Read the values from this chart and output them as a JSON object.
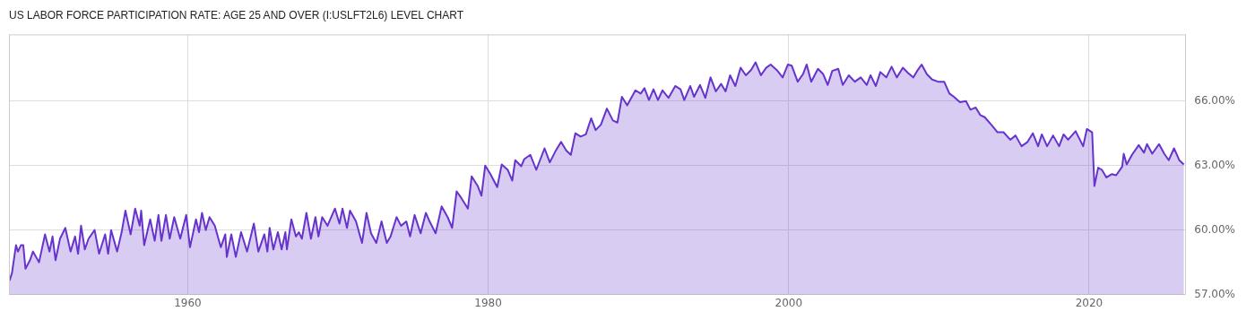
{
  "chart_data": {
    "type": "area",
    "title": "US LABOR FORCE PARTICIPATION RATE: AGE 25 AND OVER (I:USLFT2L6) LEVEL CHART",
    "grid": true,
    "xlim": [
      1948.1,
      2026.4
    ],
    "xticks": [
      1960,
      1980,
      2000,
      2020
    ],
    "ylim": [
      57,
      69.1
    ],
    "yticks": [
      {
        "value": 57,
        "label": "57.00%"
      },
      {
        "value": 60,
        "label": "60.00%"
      },
      {
        "value": 63,
        "label": "63.00%"
      },
      {
        "value": 66,
        "label": "66.00%"
      }
    ],
    "series": [
      {
        "color": "#6633cc",
        "x": [
          1948.14,
          1948.3,
          1948.57,
          1948.7,
          1948.9,
          1949.05,
          1949.2,
          1949.5,
          1949.7,
          1950.1,
          1950.5,
          1950.8,
          1951.0,
          1951.2,
          1951.5,
          1951.85,
          1952.2,
          1952.5,
          1952.7,
          1952.9,
          1953.15,
          1953.4,
          1953.8,
          1954.1,
          1954.5,
          1954.7,
          1954.9,
          1955.3,
          1955.6,
          1955.85,
          1956.2,
          1956.5,
          1956.8,
          1956.9,
          1957.1,
          1957.5,
          1957.8,
          1958.05,
          1958.25,
          1958.55,
          1958.8,
          1959.1,
          1959.5,
          1959.9,
          1960.15,
          1960.55,
          1960.75,
          1960.95,
          1961.2,
          1961.45,
          1961.8,
          1962.2,
          1962.5,
          1962.6,
          1962.9,
          1963.2,
          1963.55,
          1963.95,
          1964.4,
          1964.7,
          1965.1,
          1965.3,
          1965.45,
          1965.7,
          1966.0,
          1966.25,
          1966.5,
          1966.6,
          1966.9,
          1967.2,
          1967.4,
          1967.6,
          1967.9,
          1968.2,
          1968.5,
          1968.7,
          1968.95,
          1969.3,
          1969.8,
          1970.1,
          1970.3,
          1970.6,
          1970.8,
          1971.2,
          1971.6,
          1971.9,
          1972.2,
          1972.55,
          1972.9,
          1973.25,
          1973.5,
          1973.9,
          1974.2,
          1974.55,
          1974.8,
          1975.1,
          1975.5,
          1975.85,
          1976.1,
          1976.5,
          1976.9,
          1977.3,
          1977.6,
          1977.9,
          1978.2,
          1978.65,
          1978.9,
          1979.3,
          1979.55,
          1979.8,
          1980.15,
          1980.6,
          1980.9,
          1981.3,
          1981.6,
          1981.8,
          1982.2,
          1982.4,
          1982.8,
          1983.2,
          1983.75,
          1984.1,
          1984.5,
          1984.85,
          1985.2,
          1985.5,
          1985.8,
          1986.15,
          1986.5,
          1986.85,
          1987.15,
          1987.5,
          1987.9,
          1988.3,
          1988.6,
          1988.9,
          1989.25,
          1989.8,
          1990.15,
          1990.4,
          1990.7,
          1991.0,
          1991.3,
          1991.6,
          1992.0,
          1992.45,
          1992.8,
          1993.05,
          1993.45,
          1993.7,
          1994.1,
          1994.45,
          1994.8,
          1995.15,
          1995.5,
          1995.8,
          1996.1,
          1996.45,
          1996.8,
          1997.15,
          1997.5,
          1997.8,
          1998.15,
          1998.5,
          1998.8,
          1999.2,
          1999.6,
          1999.95,
          2000.2,
          2000.6,
          2000.95,
          2001.2,
          2001.5,
          2001.95,
          2002.3,
          2002.6,
          2002.9,
          2003.3,
          2003.6,
          2004.0,
          2004.4,
          2004.8,
          2005.2,
          2005.45,
          2005.8,
          2006.1,
          2006.5,
          2006.85,
          2007.2,
          2007.6,
          2007.95,
          2008.3,
          2008.55,
          2008.85,
          2009.2,
          2009.55,
          2009.95,
          2010.35,
          2010.7,
          2011.0,
          2011.4,
          2011.8,
          2012.1,
          2012.45,
          2012.75,
          2013.05,
          2013.55,
          2013.9,
          2014.3,
          2014.75,
          2015.1,
          2015.5,
          2015.9,
          2016.25,
          2016.6,
          2016.85,
          2017.2,
          2017.6,
          2018.0,
          2018.3,
          2018.6,
          2019.1,
          2019.6,
          2019.85,
          2020.2,
          2020.35,
          2020.6,
          2020.85,
          2021.15,
          2021.5,
          2021.8,
          2022.2,
          2022.3,
          2022.5,
          2022.85,
          2023.3,
          2023.65,
          2023.85,
          2024.2,
          2024.65,
          2025.0,
          2025.3,
          2025.65,
          2026.0,
          2026.3
        ],
        "values": [
          57.65,
          58.0,
          59.3,
          59.0,
          59.3,
          59.3,
          58.2,
          58.6,
          59.0,
          58.5,
          59.8,
          59.0,
          59.7,
          58.6,
          59.6,
          60.1,
          59.0,
          59.7,
          58.9,
          60.2,
          59.1,
          59.6,
          60.0,
          58.9,
          59.8,
          58.9,
          60.0,
          59.0,
          59.9,
          60.9,
          59.8,
          61.0,
          60.2,
          60.9,
          59.3,
          60.5,
          59.5,
          60.7,
          59.5,
          60.7,
          59.6,
          60.6,
          59.6,
          60.7,
          59.2,
          60.5,
          59.9,
          60.8,
          60.0,
          60.6,
          60.2,
          59.2,
          59.8,
          58.75,
          59.8,
          58.75,
          59.9,
          59.0,
          60.3,
          59.0,
          59.8,
          59.0,
          60.1,
          59.1,
          59.9,
          59.1,
          59.9,
          59.1,
          60.5,
          59.7,
          59.9,
          59.6,
          60.8,
          59.6,
          60.6,
          59.7,
          60.6,
          60.2,
          61.0,
          60.3,
          61.0,
          60.1,
          60.9,
          60.4,
          59.4,
          60.8,
          59.85,
          59.4,
          60.4,
          59.4,
          59.7,
          60.6,
          60.2,
          60.4,
          59.7,
          60.7,
          59.85,
          60.8,
          60.4,
          59.85,
          61.1,
          60.6,
          60.1,
          61.8,
          61.5,
          61.0,
          62.5,
          62.05,
          61.6,
          63.0,
          62.6,
          62.0,
          63.05,
          62.8,
          62.3,
          63.25,
          62.97,
          63.3,
          63.5,
          62.8,
          63.8,
          63.15,
          63.7,
          64.1,
          63.7,
          63.5,
          64.5,
          64.35,
          64.45,
          65.2,
          64.65,
          64.9,
          65.65,
          65.1,
          65.0,
          66.2,
          65.8,
          66.5,
          66.35,
          66.6,
          66.05,
          66.55,
          66.05,
          66.5,
          66.15,
          66.7,
          66.55,
          66.05,
          66.7,
          66.2,
          66.75,
          66.15,
          67.1,
          66.45,
          66.8,
          66.45,
          67.2,
          66.7,
          67.55,
          67.2,
          67.45,
          67.8,
          67.2,
          67.55,
          67.7,
          67.45,
          67.1,
          67.7,
          67.65,
          66.9,
          67.25,
          67.7,
          66.9,
          67.5,
          67.25,
          66.75,
          67.4,
          67.5,
          66.75,
          67.2,
          66.9,
          67.1,
          66.75,
          67.2,
          66.7,
          67.35,
          67.1,
          67.6,
          67.1,
          67.55,
          67.3,
          67.1,
          67.4,
          67.7,
          67.25,
          67.0,
          66.9,
          66.9,
          66.35,
          66.2,
          65.95,
          66.0,
          65.6,
          65.7,
          65.35,
          65.25,
          64.85,
          64.55,
          64.55,
          64.2,
          64.4,
          63.9,
          64.1,
          64.5,
          63.9,
          64.45,
          63.9,
          64.4,
          63.9,
          64.45,
          64.2,
          64.6,
          63.9,
          64.7,
          64.55,
          62.05,
          62.9,
          62.8,
          62.45,
          62.6,
          62.55,
          62.95,
          63.55,
          63.05,
          63.5,
          63.95,
          63.6,
          64.0,
          63.55,
          64.0,
          63.55,
          63.25,
          63.8,
          63.25,
          63.05
        ]
      }
    ]
  }
}
